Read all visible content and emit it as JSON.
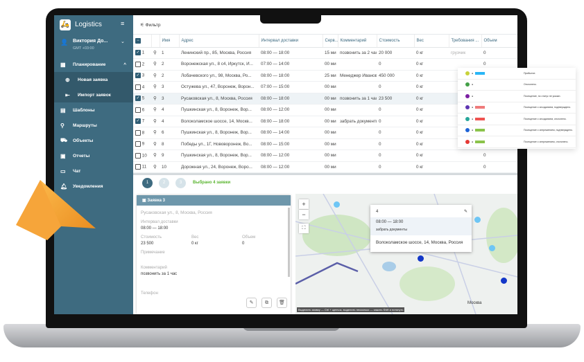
{
  "app": {
    "title": "Logistics",
    "user": "Виктория До...",
    "timezone": "GMT +03:00"
  },
  "sidebar": {
    "items": [
      {
        "label": "Планирование",
        "icon": "calendar-icon"
      },
      {
        "label": "Новая заявка",
        "icon": "new-doc-icon"
      },
      {
        "label": "Импорт заявок",
        "icon": "import-icon"
      },
      {
        "label": "Шаблоны",
        "icon": "template-icon"
      },
      {
        "label": "Маршруты",
        "icon": "route-icon"
      },
      {
        "label": "Объекты",
        "icon": "car-icon"
      },
      {
        "label": "Отчеты",
        "icon": "report-icon"
      },
      {
        "label": "Чат",
        "icon": "chat-icon"
      },
      {
        "label": "Уведомления",
        "icon": "bell-icon"
      }
    ]
  },
  "toolbar": {
    "filter": "Фильтр"
  },
  "table": {
    "headers": [
      "",
      "Имя",
      "Адрес",
      "Интервал доставки",
      "Серв...",
      "Комментарий",
      "Стоимость",
      "Вес",
      "Требования ...",
      "Объем"
    ],
    "rows": [
      {
        "n": "1",
        "name": "1",
        "checked": true,
        "addr": "Ленинский пр., 85, Москва, Россия",
        "int": "08:00 — 18:00",
        "serv": "15 ми",
        "comment": "позвонить за 2 часа",
        "cost": "20 000",
        "w": "0 кг",
        "req": "грузчик",
        "vol": "0"
      },
      {
        "n": "2",
        "name": "2",
        "checked": false,
        "addr": "Воронежская ул., 8 с4, Иркутск, И...",
        "int": "07:00 — 14:00",
        "serv": "00 ми",
        "comment": "",
        "cost": "0",
        "w": "0 кг",
        "req": "",
        "vol": "0"
      },
      {
        "n": "3",
        "name": "2",
        "checked": true,
        "addr": "Лобачевского ул., 98, Москва, Ро...",
        "int": "08:00 — 18:00",
        "serv": "25 ми",
        "comment": "Менеджер Иванов",
        "cost": "450 000",
        "w": "0 кг",
        "req": "",
        "vol": ""
      },
      {
        "n": "4",
        "name": "3",
        "checked": false,
        "addr": "Остужева ул., 47, Воронеж, Ворон...",
        "int": "07:00 — 15:00",
        "serv": "00 ми",
        "comment": "",
        "cost": "0",
        "w": "0 кг",
        "req": "",
        "vol": ""
      },
      {
        "n": "5",
        "name": "3",
        "checked": true,
        "addr": "Русаковская ул., 8, Москва, Россия",
        "int": "08:00 — 18:00",
        "serv": "00 ми",
        "comment": "позвонить за 1 час",
        "cost": "23 500",
        "w": "0 кг",
        "req": "",
        "vol": ""
      },
      {
        "n": "6",
        "name": "4",
        "checked": false,
        "addr": "Пушкинская ул., 8, Воронеж, Вор...",
        "int": "08:00 — 12:00",
        "serv": "00 ми",
        "comment": "",
        "cost": "0",
        "w": "0 кг",
        "req": "",
        "vol": ""
      },
      {
        "n": "7",
        "name": "4",
        "checked": true,
        "addr": "Волоколамское шоссе, 14, Москв...",
        "int": "08:00 — 18:00",
        "serv": "00 ми",
        "comment": "забрать документы",
        "cost": "0",
        "w": "0 кг",
        "req": "",
        "vol": ""
      },
      {
        "n": "8",
        "name": "6",
        "checked": false,
        "addr": "Пушкинская ул., 8, Воронеж, Вор...",
        "int": "08:00 — 14:00",
        "serv": "00 ми",
        "comment": "",
        "cost": "0",
        "w": "0 кг",
        "req": "",
        "vol": ""
      },
      {
        "n": "9",
        "name": "8",
        "checked": false,
        "addr": "Победы ул., 1Г, Нововоронеж, Во...",
        "int": "08:00 — 15:00",
        "serv": "00 ми",
        "comment": "",
        "cost": "0",
        "w": "0 кг",
        "req": "",
        "vol": ""
      },
      {
        "n": "10",
        "name": "9",
        "checked": false,
        "addr": "Пушкинская ул., 8, Воронеж, Вор...",
        "int": "08:00 — 12:00",
        "serv": "00 ми",
        "comment": "",
        "cost": "0",
        "w": "0 кг",
        "req": "",
        "vol": "0"
      },
      {
        "n": "11",
        "name": "10",
        "checked": false,
        "addr": "Дорожная ул., 24, Воронеж, Воро...",
        "int": "08:00 — 12:00",
        "serv": "00 ми",
        "comment": "",
        "cost": "0",
        "w": "0 кг",
        "req": "",
        "vol": "0"
      }
    ]
  },
  "pagination": {
    "pages": [
      "1",
      "2",
      "3"
    ],
    "current": "1",
    "selected": "Выбрано 4 заявки"
  },
  "detail": {
    "title": "Заявка 3",
    "address": "Русаковская ул., 8, Москва, Россия",
    "interval_label": "Интервал доставки",
    "interval": "08:00 — 18:00",
    "cost_label": "Стоимость",
    "cost": "23 500",
    "weight_label": "Вес",
    "weight": "0 кг",
    "volume_label": "Объем",
    "volume": "0",
    "note_label": "Примечание",
    "comment_label": "Комментарий",
    "comment": "позвонить за 1 час",
    "phone_label": "Телефон"
  },
  "map": {
    "popup": {
      "name": "4",
      "interval": "08:00 — 18:00",
      "comment": "забрать документы",
      "address": "Волоколамское шоссе, 14, Москва, Россия"
    },
    "city": "Москва",
    "hint": "Выделить заявку — Ctrl + щелчок, выделить несколько — зажать Shift и потянуть",
    "zoom_in": "+",
    "zoom_out": "−"
  },
  "notifications": [
    {
      "color": "#c8d23a",
      "badge": "#29b6f6",
      "text": "Прибытие."
    },
    {
      "color": "#43a047",
      "badge": "",
      "text": "Отклонено."
    },
    {
      "color": "#7b1fa2",
      "badge": "",
      "text": "Посещение, но статус не указан."
    },
    {
      "color": "#5e35b1",
      "badge": "#ef7b7b",
      "text": "Посещение с опозданием, подтверждено."
    },
    {
      "color": "#26a69a",
      "badge": "#ef5350",
      "text": "Посещение с опозданием, отклонено."
    },
    {
      "color": "#1e63d6",
      "badge": "#8bc34a",
      "text": "Посещение с опережением, подтверждено."
    },
    {
      "color": "#e53935",
      "badge": "#8bc34a",
      "text": "Посещение с опережением, отклонено."
    }
  ],
  "colors": {
    "sidebar": "#3e6b80",
    "accent": "#2f5d74",
    "selected_text": "#5ab52f",
    "cursor": "#f5a623"
  }
}
